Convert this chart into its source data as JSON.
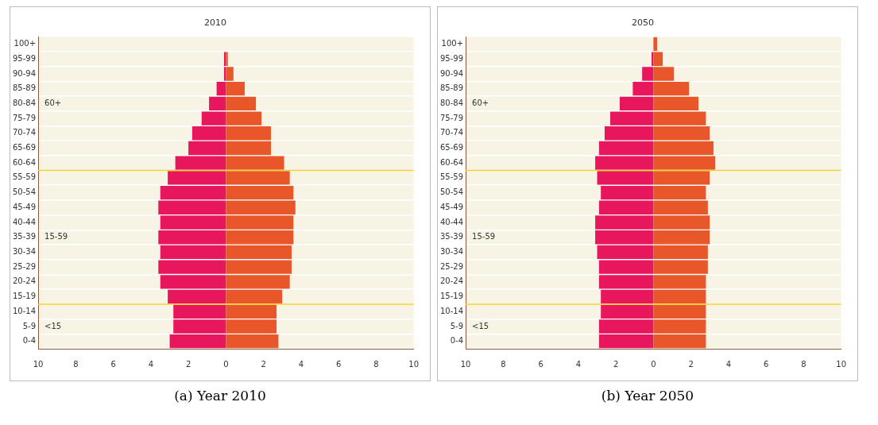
{
  "chart_data": [
    {
      "type": "bar",
      "title": "2010",
      "orientation": "horizontal",
      "stacked": true,
      "categories": [
        "100+",
        "95-99",
        "90-94",
        "85-89",
        "80-84",
        "75-79",
        "70-74",
        "65-69",
        "60-64",
        "55-59",
        "50-54",
        "45-49",
        "40-44",
        "35-39",
        "30-34",
        "25-29",
        "20-24",
        "15-19",
        "10-14",
        "5-9",
        "0-4"
      ],
      "series": [
        {
          "color": "#e8175d",
          "values": [
            0,
            -0.1,
            -0.1,
            -0.5,
            -0.9,
            -1.3,
            -1.8,
            -2.0,
            -2.7,
            -3.1,
            -3.5,
            -3.6,
            -3.5,
            -3.6,
            -3.5,
            -3.6,
            -3.5,
            -3.1,
            -2.8,
            -2.8,
            -3.0
          ]
        },
        {
          "color": "#e8572a",
          "values": [
            0,
            0.1,
            0.4,
            1.0,
            1.6,
            1.9,
            2.4,
            2.4,
            3.1,
            3.4,
            3.6,
            3.7,
            3.6,
            3.6,
            3.5,
            3.5,
            3.4,
            3.0,
            2.7,
            2.7,
            2.8
          ]
        }
      ],
      "xlim": [
        -10,
        10
      ],
      "xticks": [
        {
          "value": -10,
          "label": "10"
        },
        {
          "value": -8,
          "label": "8"
        },
        {
          "value": -6,
          "label": "6"
        },
        {
          "value": -4,
          "label": "4"
        },
        {
          "value": -2,
          "label": "2"
        },
        0,
        2,
        4,
        6,
        8,
        10
      ],
      "bands": [
        {
          "axis": "y",
          "from": "60-64",
          "to": "100+",
          "label": "60+",
          "color": "#f7f4e6"
        },
        {
          "axis": "y",
          "from": "15-19",
          "to": "55-59",
          "label": "15-59",
          "color": "#f7f4e6"
        },
        {
          "axis": "y",
          "from": "0-4",
          "to": "10-14",
          "label": "<15",
          "color": "#f7f4e6"
        }
      ],
      "grid": "y",
      "legend": false,
      "annotations": [
        "(a) Year 2010"
      ]
    },
    {
      "type": "bar",
      "title": "2050",
      "orientation": "horizontal",
      "stacked": true,
      "categories": [
        "100+",
        "95-99",
        "90-94",
        "85-89",
        "80-84",
        "75-79",
        "70-74",
        "65-69",
        "60-64",
        "55-59",
        "50-54",
        "45-49",
        "40-44",
        "35-39",
        "30-34",
        "25-29",
        "20-24",
        "15-19",
        "10-14",
        "5-9",
        "0-4"
      ],
      "series": [
        {
          "color": "#e8175d",
          "values": [
            0,
            -0.1,
            -0.6,
            -1.1,
            -1.8,
            -2.3,
            -2.6,
            -2.9,
            -3.1,
            -3.0,
            -2.8,
            -2.9,
            -3.1,
            -3.1,
            -3.0,
            -2.9,
            -2.9,
            -2.8,
            -2.8,
            -2.9,
            -2.9
          ]
        },
        {
          "color": "#e8572a",
          "values": [
            0.2,
            0.5,
            1.1,
            1.9,
            2.4,
            2.8,
            3.0,
            3.2,
            3.3,
            3.0,
            2.8,
            2.9,
            3.0,
            3.0,
            2.9,
            2.9,
            2.8,
            2.8,
            2.8,
            2.8,
            2.8
          ]
        }
      ],
      "xlim": [
        -10,
        10
      ],
      "xticks": [
        {
          "value": -10,
          "label": "10"
        },
        {
          "value": -8,
          "label": "8"
        },
        {
          "value": -6,
          "label": "6"
        },
        {
          "value": -4,
          "label": "4"
        },
        {
          "value": -2,
          "label": "2"
        },
        0,
        2,
        4,
        6,
        8,
        10
      ],
      "bands": [
        {
          "axis": "y",
          "from": "60-64",
          "to": "100+",
          "label": "60+",
          "color": "#f7f4e6"
        },
        {
          "axis": "y",
          "from": "15-19",
          "to": "55-59",
          "label": "15-59",
          "color": "#f7f4e6"
        },
        {
          "axis": "y",
          "from": "0-4",
          "to": "10-14",
          "label": "<15",
          "color": "#f7f4e6"
        }
      ],
      "grid": "y",
      "legend": false,
      "annotations": [
        "(b) Year 2050"
      ]
    }
  ]
}
